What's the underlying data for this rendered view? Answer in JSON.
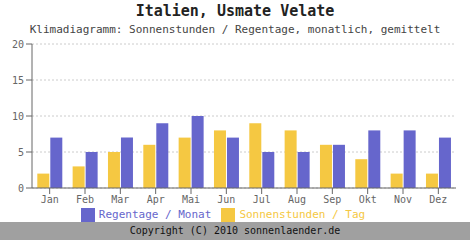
{
  "chart_data": {
    "type": "bar",
    "title": "Italien, Usmate Velate",
    "subtitle": "Klimadiagramm: Sonnenstunden / Regentage, monatlich, gemittelt",
    "categories": [
      "Jan",
      "Feb",
      "Mar",
      "Apr",
      "Mai",
      "Jun",
      "Jul",
      "Aug",
      "Sep",
      "Okt",
      "Nov",
      "Dez"
    ],
    "series": [
      {
        "name": "Sonnenstunden / Tag",
        "color": "#F5C842",
        "values": [
          2,
          3,
          5,
          6,
          7,
          8,
          9,
          8,
          6,
          4,
          2,
          2
        ]
      },
      {
        "name": "Regentage / Monat",
        "color": "#6666CC",
        "values": [
          7,
          5,
          7,
          9,
          10,
          7,
          5,
          5,
          6,
          8,
          8,
          7
        ]
      }
    ],
    "ylim": [
      0,
      20
    ],
    "yticks": [
      0,
      5,
      10,
      15,
      20
    ],
    "grid": true,
    "legend": "bottom",
    "annotations": [
      "Copyright (C) 2010 sonnenlaender.de"
    ]
  }
}
